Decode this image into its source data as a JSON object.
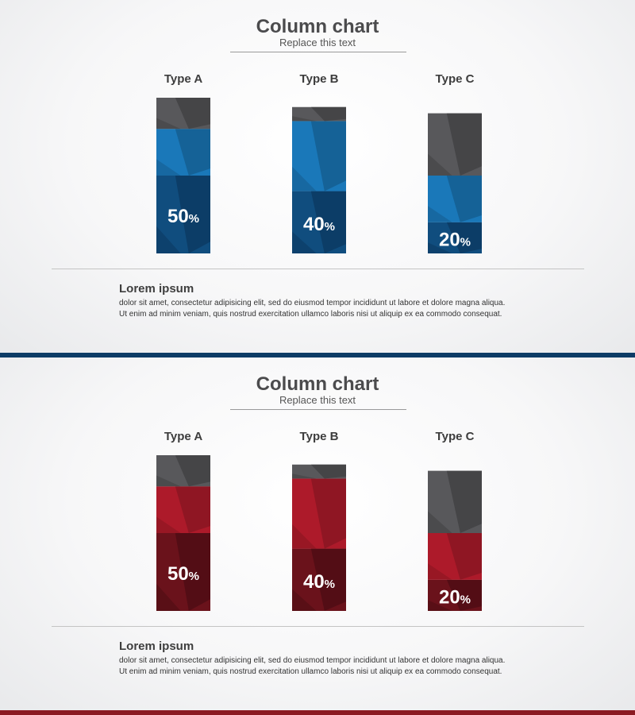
{
  "slides": [
    {
      "theme": "blue",
      "title": "Column chart",
      "subtitle": "Replace  this  text",
      "lorem_title": "Lorem ipsum",
      "lorem_lines": [
        "dolor sit amet, consectetur adipisicing elit, sed do eiusmod tempor incididunt ut labore et dolore magna aliqua.",
        "Ut enim ad minim veniam, quis nostrud exercitation ullamco laboris nisi ut aliquip ex ea commodo consequat."
      ],
      "colors": {
        "grey": "#58585b",
        "grey_dark": "#424244",
        "accent_light": "#1a78b9",
        "accent_light_dark": "#155e91",
        "accent_dark": "#104d7e",
        "accent_dark_dark": "#0c3b63",
        "band": "#0d3c66"
      }
    },
    {
      "theme": "red",
      "title": "Column chart",
      "subtitle": "Replace  this  text",
      "lorem_title": "Lorem ipsum",
      "lorem_lines": [
        "dolor sit amet, consectetur adipisicing elit, sed do eiusmod tempor incididunt ut labore et dolore magna aliqua.",
        "Ut enim ad minim veniam, quis nostrud exercitation ullamco laboris nisi ut aliquip ex ea commodo consequat."
      ],
      "colors": {
        "grey": "#58585b",
        "grey_dark": "#424244",
        "accent_light": "#ad1a2a",
        "accent_light_dark": "#8a1622",
        "accent_dark": "#6a121b",
        "accent_dark_dark": "#4f0d14",
        "band": "#8b1a22"
      }
    }
  ],
  "chart_data": [
    {
      "type": "bar",
      "stacked": true,
      "categories": [
        "Type A",
        "Type B",
        "Type C"
      ],
      "series": [
        {
          "values": [
            50,
            40,
            20
          ]
        },
        {
          "values": [
            30,
            45,
            30
          ]
        },
        {
          "values": [
            20,
            9,
            40
          ]
        }
      ],
      "data_labels": [
        "50%",
        "40%",
        "20%"
      ],
      "ylim": [
        0,
        100
      ],
      "grid": false
    },
    {
      "type": "bar",
      "stacked": true,
      "categories": [
        "Type A",
        "Type B",
        "Type C"
      ],
      "series": [
        {
          "values": [
            50,
            40,
            20
          ]
        },
        {
          "values": [
            30,
            45,
            30
          ]
        },
        {
          "values": [
            20,
            9,
            40
          ]
        }
      ],
      "data_labels": [
        "50%",
        "40%",
        "20%"
      ],
      "ylim": [
        0,
        100
      ],
      "grid": false
    }
  ]
}
